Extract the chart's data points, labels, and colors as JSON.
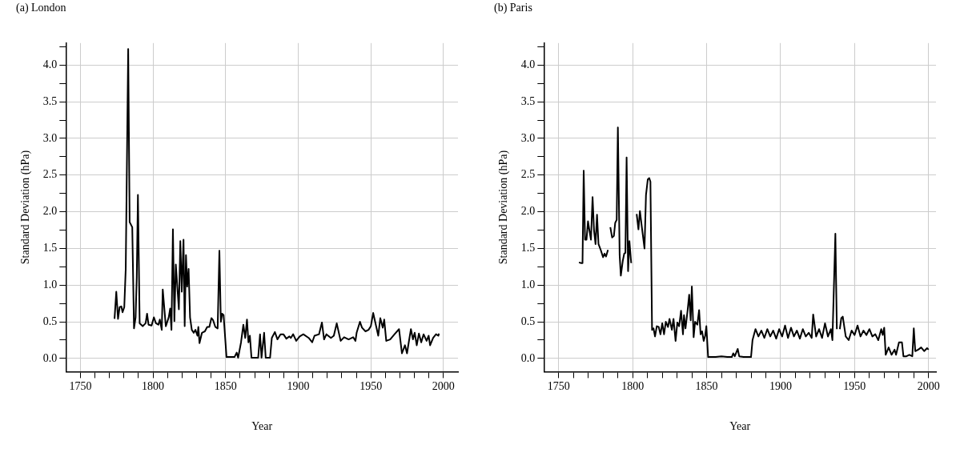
{
  "chart_data": [
    {
      "type": "line",
      "title": "(a) London",
      "xlabel": "Year",
      "ylabel": "Standard Deviation (hPa)",
      "color": "#000000",
      "grid": true,
      "xlim": [
        1740,
        2010
      ],
      "ylim": [
        -0.18,
        4.3
      ],
      "xticks": [
        1750,
        {
          "value": 1760,
          "label": null
        },
        {
          "value": 1770,
          "label": null
        },
        {
          "value": 1780,
          "label": null
        },
        {
          "value": 1790,
          "label": null
        },
        1800,
        {
          "value": 1810,
          "label": null
        },
        {
          "value": 1820,
          "label": null
        },
        {
          "value": 1830,
          "label": null
        },
        {
          "value": 1840,
          "label": null
        },
        1850,
        {
          "value": 1860,
          "label": null
        },
        {
          "value": 1870,
          "label": null
        },
        {
          "value": 1880,
          "label": null
        },
        {
          "value": 1890,
          "label": null
        },
        1900,
        {
          "value": 1910,
          "label": null
        },
        {
          "value": 1920,
          "label": null
        },
        {
          "value": 1930,
          "label": null
        },
        {
          "value": 1940,
          "label": null
        },
        1950,
        {
          "value": 1960,
          "label": null
        },
        {
          "value": 1970,
          "label": null
        },
        {
          "value": 1980,
          "label": null
        },
        {
          "value": 1990,
          "label": null
        },
        2000
      ],
      "yticks": [
        {
          "value": 0,
          "label": "0.0"
        },
        {
          "value": 0.25,
          "label": null
        },
        {
          "value": 0.5,
          "label": "0.5"
        },
        {
          "value": 0.75,
          "label": null
        },
        {
          "value": 1,
          "label": "1.0"
        },
        {
          "value": 1.25,
          "label": null
        },
        {
          "value": 1.5,
          "label": "1.5"
        },
        {
          "value": 1.75,
          "label": null
        },
        {
          "value": 2,
          "label": "2.0"
        },
        {
          "value": 2.25,
          "label": null
        },
        {
          "value": 2.5,
          "label": "2.5"
        },
        {
          "value": 2.75,
          "label": null
        },
        {
          "value": 3,
          "label": "3.0"
        },
        {
          "value": 3.25,
          "label": null
        },
        {
          "value": 3.5,
          "label": "3.5"
        },
        {
          "value": 3.75,
          "label": null
        },
        {
          "value": 4,
          "label": "4.0"
        },
        {
          "value": 4.25,
          "label": null
        }
      ],
      "x": [
        1773.5,
        1774.7,
        1775.9,
        1777,
        1778.2,
        1779,
        1780.2,
        1781.2,
        1782.9,
        1783.9,
        1785.7,
        1786.9,
        1788,
        1788.8,
        1789.6,
        1790.8,
        1792.9,
        1794.9,
        1795.9,
        1796.9,
        1799,
        1800.6,
        1802,
        1803.7,
        1804.7,
        1806,
        1806.7,
        1808.8,
        1810.8,
        1811.8,
        1812.7,
        1813.7,
        1814.7,
        1815.7,
        1817.8,
        1818.8,
        1819.8,
        1821,
        1821.8,
        1822.7,
        1823.5,
        1824.5,
        1825.5,
        1826.7,
        1828,
        1829.2,
        1830.6,
        1831.2,
        1832,
        1833.7,
        1835.7,
        1837.3,
        1838.8,
        1840.2,
        1841.4,
        1842.9,
        1844.5,
        1845.7,
        1846.7,
        1847.6,
        1848.6,
        1850.6,
        1856.1,
        1857.6,
        1858.6,
        1860.6,
        1862.2,
        1863.5,
        1864.7,
        1865.7,
        1866.7,
        1867.8,
        1872.4,
        1873.7,
        1874.7,
        1876.5,
        1877.6,
        1880.6,
        1881.8,
        1883.9,
        1885.7,
        1887.8,
        1889.8,
        1891.8,
        1893.9,
        1894.9,
        1896.5,
        1898.6,
        1901,
        1903.5,
        1907.2,
        1909.6,
        1911.2,
        1914.3,
        1916.3,
        1917.8,
        1919.4,
        1922.5,
        1924.5,
        1926.5,
        1929.2,
        1931.6,
        1934.7,
        1937.8,
        1939.4,
        1940.2,
        1942.5,
        1943.9,
        1946.3,
        1948.4,
        1950,
        1951.6,
        1955.1,
        1956.5,
        1958.2,
        1959.2,
        1960.6,
        1963.3,
        1966.3,
        1969.4,
        1971.4,
        1973.5,
        1974.9,
        1976.1,
        1977.6,
        1979,
        1980.2,
        1981.6,
        1983.1,
        1984.7,
        1986.3,
        1988.4,
        1989.8,
        1990.8,
        1992.9,
        1994.9,
        1996.5,
        1996.9
      ],
      "values": [
        0.54,
        0.91,
        0.54,
        0.7,
        0.71,
        0.63,
        0.7,
        1.22,
        4.22,
        1.86,
        1.79,
        0.41,
        0.56,
        1.11,
        2.23,
        0.48,
        0.44,
        0.48,
        0.61,
        0.46,
        0.45,
        0.56,
        0.48,
        0.46,
        0.53,
        0.39,
        0.94,
        0.44,
        0.56,
        0.68,
        0.39,
        1.76,
        0.51,
        1.28,
        0.67,
        1.6,
        0.91,
        1.62,
        0.44,
        1.41,
        0.98,
        1.22,
        0.56,
        0.39,
        0.35,
        0.39,
        0.31,
        0.43,
        0.21,
        0.35,
        0.37,
        0.43,
        0.43,
        0.55,
        0.52,
        0.43,
        0.41,
        1.47,
        0.5,
        0.61,
        0.59,
        0.02,
        0.02,
        0.08,
        0.01,
        0.22,
        0.46,
        0.28,
        0.53,
        0.22,
        0.31,
        0.01,
        0.01,
        0.33,
        0.01,
        0.35,
        0.01,
        0.01,
        0.28,
        0.36,
        0.26,
        0.33,
        0.33,
        0.27,
        0.3,
        0.28,
        0.33,
        0.24,
        0.3,
        0.33,
        0.28,
        0.22,
        0.31,
        0.33,
        0.49,
        0.26,
        0.33,
        0.28,
        0.31,
        0.48,
        0.24,
        0.29,
        0.26,
        0.29,
        0.24,
        0.35,
        0.5,
        0.42,
        0.37,
        0.39,
        0.44,
        0.62,
        0.31,
        0.55,
        0.42,
        0.53,
        0.24,
        0.26,
        0.33,
        0.4,
        0.07,
        0.18,
        0.07,
        0.22,
        0.4,
        0.26,
        0.35,
        0.18,
        0.34,
        0.22,
        0.33,
        0.24,
        0.31,
        0.18,
        0.28,
        0.33,
        0.31,
        0.34
      ]
    },
    {
      "type": "line",
      "title": "(b) Paris",
      "xlabel": "Year",
      "ylabel": "Standard Deviation (hPa)",
      "color": "#000000",
      "grid": true,
      "xlim": [
        1740,
        2005
      ],
      "ylim": [
        -0.18,
        4.3
      ],
      "xticks": [
        1750,
        {
          "value": 1760,
          "label": null
        },
        {
          "value": 1770,
          "label": null
        },
        {
          "value": 1780,
          "label": null
        },
        {
          "value": 1790,
          "label": null
        },
        1800,
        {
          "value": 1810,
          "label": null
        },
        {
          "value": 1820,
          "label": null
        },
        {
          "value": 1830,
          "label": null
        },
        {
          "value": 1840,
          "label": null
        },
        1850,
        {
          "value": 1860,
          "label": null
        },
        {
          "value": 1870,
          "label": null
        },
        {
          "value": 1880,
          "label": null
        },
        {
          "value": 1890,
          "label": null
        },
        1900,
        {
          "value": 1910,
          "label": null
        },
        {
          "value": 1920,
          "label": null
        },
        {
          "value": 1930,
          "label": null
        },
        {
          "value": 1940,
          "label": null
        },
        1950,
        {
          "value": 1960,
          "label": null
        },
        {
          "value": 1970,
          "label": null
        },
        {
          "value": 1980,
          "label": null
        },
        {
          "value": 1990,
          "label": null
        },
        2000
      ],
      "yticks": [
        {
          "value": 0,
          "label": "0.0"
        },
        {
          "value": 0.25,
          "label": null
        },
        {
          "value": 0.5,
          "label": "0.5"
        },
        {
          "value": 0.75,
          "label": null
        },
        {
          "value": 1,
          "label": "1.0"
        },
        {
          "value": 1.25,
          "label": null
        },
        {
          "value": 1.5,
          "label": "1.5"
        },
        {
          "value": 1.75,
          "label": null
        },
        {
          "value": 2,
          "label": "2.0"
        },
        {
          "value": 2.25,
          "label": null
        },
        {
          "value": 2.5,
          "label": "2.5"
        },
        {
          "value": 2.75,
          "label": null
        },
        {
          "value": 3,
          "label": "3.0"
        },
        {
          "value": 3.25,
          "label": null
        },
        {
          "value": 3.5,
          "label": "3.5"
        },
        {
          "value": 3.75,
          "label": null
        },
        {
          "value": 4,
          "label": "4.0"
        },
        {
          "value": 4.25,
          "label": null
        }
      ],
      "x": [
        1763.7,
        1765.3,
        1766.1,
        1766.9,
        1767.8,
        1768.8,
        1769.8,
        1770.8,
        1771.8,
        1772.9,
        1773.9,
        1774.9,
        1775.9,
        1776.9,
        1778.4,
        1780,
        1781,
        1782,
        1783.3,
        1784.1,
        1784.9,
        1786.1,
        1787.3,
        1788.2,
        1789.2,
        1790,
        1791.2,
        1792,
        1793.3,
        1794.3,
        1795.1,
        1795.9,
        1796.9,
        1797.8,
        1799,
        1801,
        1802.7,
        1803.9,
        1804.9,
        1806.1,
        1808,
        1809,
        1810.2,
        1811.2,
        1812,
        1813.1,
        1814.1,
        1815.1,
        1816.3,
        1817.6,
        1818.8,
        1820,
        1821.2,
        1822.4,
        1823.9,
        1824.9,
        1826.5,
        1827.6,
        1829,
        1830.2,
        1831.4,
        1832.7,
        1834,
        1834.7,
        1835.7,
        1837.1,
        1838.2,
        1839.2,
        1840,
        1841.2,
        1842.2,
        1843.7,
        1844.9,
        1845.9,
        1846.9,
        1848,
        1849,
        1849.8,
        1851,
        1856,
        1860,
        1864,
        1867,
        1868,
        1869,
        1871,
        1872,
        1875,
        1880,
        1881,
        1883,
        1885,
        1887,
        1889,
        1891,
        1893,
        1895,
        1897,
        1899,
        1901,
        1903,
        1905,
        1907,
        1909,
        1911,
        1913,
        1915,
        1917,
        1919,
        1921,
        1922,
        1924,
        1926,
        1928,
        1930,
        1932,
        1934,
        1935,
        1937,
        1938,
        1939,
        1940,
        1941,
        1942,
        1944,
        1946,
        1948,
        1950,
        1952,
        1954,
        1956,
        1958,
        1960,
        1962,
        1964,
        1966,
        1968,
        1969,
        1970,
        1971,
        1973,
        1975,
        1977,
        1978,
        1980,
        1982,
        1983,
        1985,
        1987,
        1989,
        1990,
        1991,
        1993,
        1995,
        1997,
        1999,
        2000
      ],
      "values": [
        1.31,
        1.3,
        1.3,
        2.56,
        1.62,
        1.62,
        1.87,
        1.74,
        1.62,
        2.2,
        1.74,
        1.56,
        1.96,
        1.56,
        1.48,
        1.38,
        1.43,
        1.39,
        1.48,
        null,
        1.79,
        1.65,
        1.67,
        1.85,
        1.89,
        3.15,
        1.41,
        1.13,
        1.33,
        1.43,
        1.44,
        2.74,
        1.19,
        1.6,
        1.3,
        null,
        1.97,
        1.76,
        2.01,
        1.81,
        1.5,
        2.23,
        2.44,
        2.46,
        2.41,
        0.39,
        0.41,
        0.3,
        0.44,
        0.43,
        0.33,
        0.48,
        0.33,
        0.5,
        0.43,
        0.54,
        0.39,
        0.54,
        0.24,
        0.49,
        0.44,
        0.65,
        0.33,
        0.59,
        0.41,
        0.65,
        0.87,
        0.52,
        0.98,
        0.29,
        0.5,
        0.46,
        0.66,
        0.33,
        0.37,
        0.24,
        0.31,
        0.44,
        0.02,
        0.02,
        0.03,
        0.02,
        0.02,
        0.07,
        0.03,
        0.13,
        0.03,
        0.02,
        0.02,
        0.25,
        0.4,
        0.3,
        0.38,
        0.28,
        0.4,
        0.3,
        0.38,
        0.27,
        0.4,
        0.3,
        0.45,
        0.28,
        0.42,
        0.3,
        0.38,
        0.27,
        0.4,
        0.3,
        0.35,
        0.28,
        0.6,
        0.3,
        0.4,
        0.28,
        0.48,
        0.3,
        0.4,
        0.25,
        1.7,
        0.4,
        null,
        0.4,
        0.55,
        0.57,
        0.3,
        0.25,
        0.38,
        0.32,
        0.45,
        0.3,
        0.38,
        0.32,
        0.4,
        0.3,
        0.33,
        0.25,
        0.4,
        0.32,
        0.42,
        0.05,
        0.15,
        0.05,
        0.12,
        0.05,
        0.22,
        0.22,
        0.03,
        0.03,
        0.05,
        0.03,
        0.41,
        0.1,
        0.12,
        0.15,
        0.1,
        0.14,
        0.12
      ]
    }
  ]
}
